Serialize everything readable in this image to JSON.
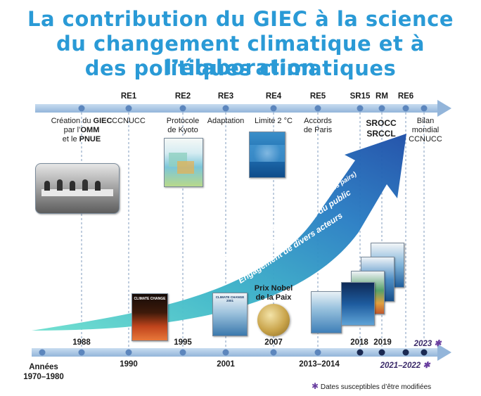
{
  "title": {
    "line1": "La contribution du GIEC à la science",
    "line2": "du changement climatique et à l’élaboration",
    "line3": "des politiques climatiques"
  },
  "top_timeline": {
    "codes": [
      "RE1",
      "RE2",
      "RE3",
      "RE4",
      "RE5",
      "SR15",
      "RM",
      "RE6"
    ],
    "labels": {
      "giec_prefix": "Création du ",
      "giec_bold": "GIEC",
      "giec_line2_prefix": "par l’",
      "giec_line2_bold": "OMM",
      "giec_line3_prefix": "et le ",
      "giec_line3_bold": "PNUE",
      "ccnucc": "CCNUCC",
      "kyoto_1": "Protocole",
      "kyoto_2": "de Kyoto",
      "adaptation": "Adaptation",
      "limite": "Limite 2 °C",
      "paris_1": "Accords",
      "paris_2": "de Paris",
      "srocc": "SROCC",
      "srccl": "SRCCL",
      "bilan_1": "Bilan",
      "bilan_2": "mondial",
      "bilan_3": "CCNUCC"
    }
  },
  "arrow": {
    "line1": "Science du changement climatique (littérature validée par des pairs)",
    "line2": "Sensibilisation croissante du public",
    "line3": "Engagement de divers acteurs"
  },
  "nobel": {
    "line1": "Prix Nobel",
    "line2": "de la Paix"
  },
  "covers": {
    "ar1": "CLIMATE CHANGE",
    "ar3": "CLIMATE CHANGE 2001"
  },
  "bottom_timeline": {
    "years_above": [
      "1988",
      "1995",
      "2007",
      "2018",
      "2019",
      "2023"
    ],
    "years_below": [
      "1990",
      "2001",
      "2013–2014",
      "2021–2022"
    ],
    "annees_1": "Années",
    "annees_2": "1970–1980"
  },
  "footnote": "Dates susceptibles d’être modifiées",
  "colors": {
    "title": "#2a9ad6",
    "arrow_start": "#5fd8c8",
    "arrow_end": "#1f4fa8",
    "timeline": "#a9c6e4",
    "star": "#6a3fa0"
  }
}
